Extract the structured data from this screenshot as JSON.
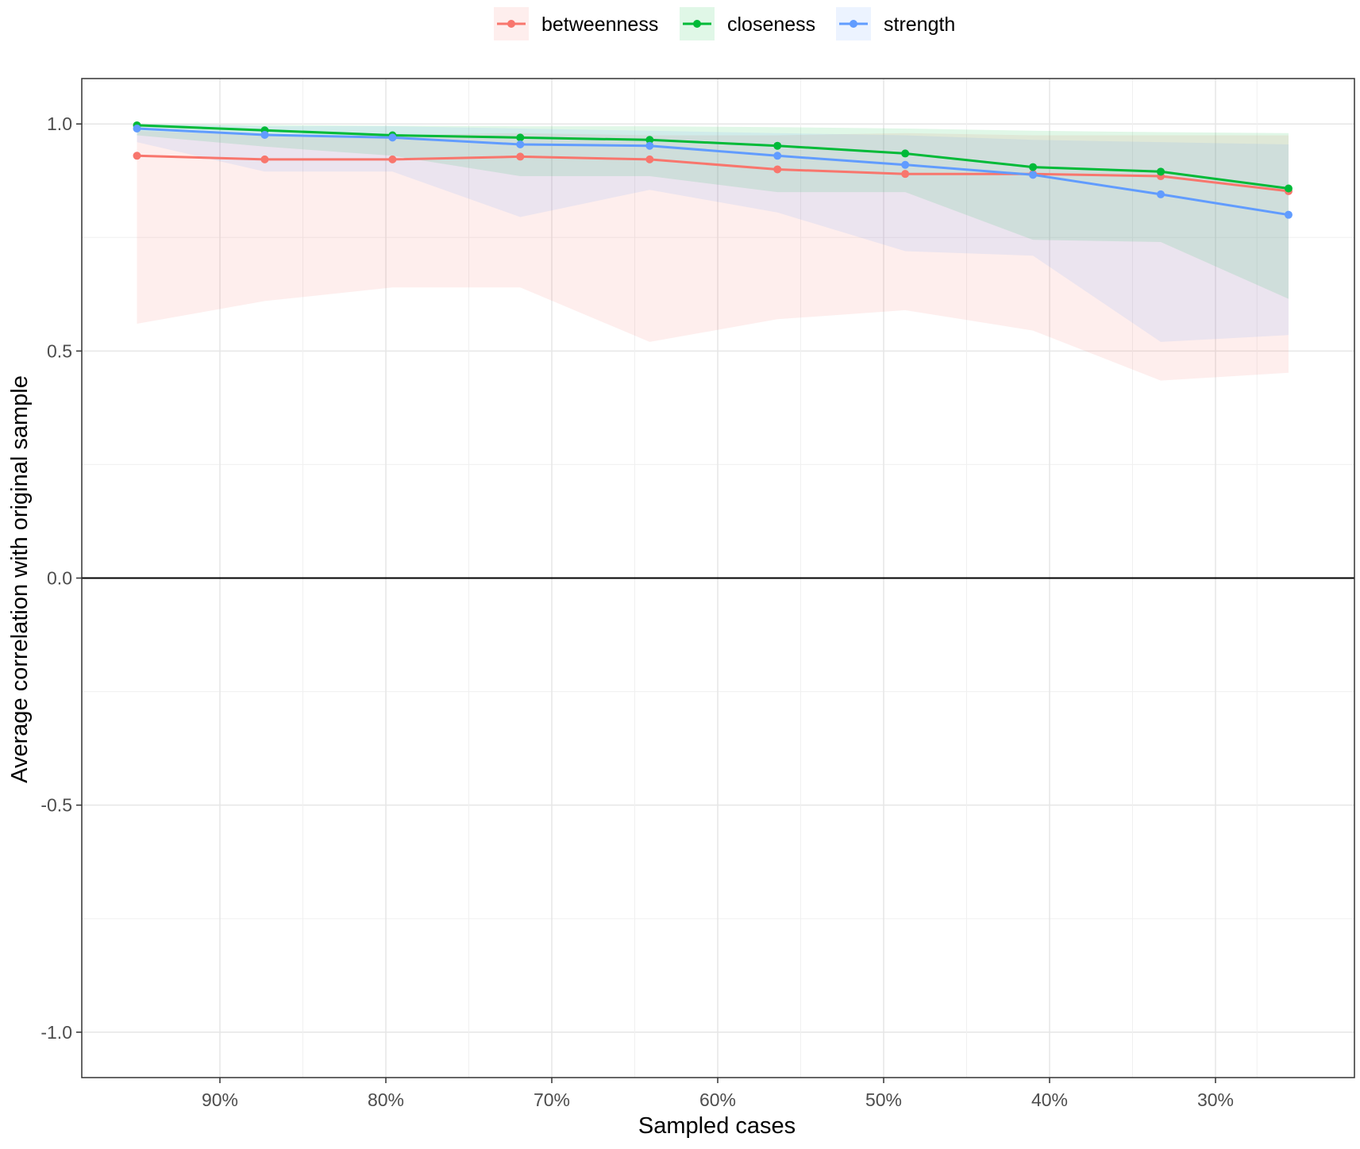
{
  "chart_data": {
    "type": "line",
    "xlabel": "Sampled cases",
    "ylabel": "Average correlation with original sample",
    "x_ticks": [
      "90%",
      "80%",
      "70%",
      "60%",
      "50%",
      "40%",
      "30%"
    ],
    "x_tick_values": [
      0.9,
      0.8,
      0.7,
      0.6,
      0.5,
      0.4,
      0.3
    ],
    "x_reversed": true,
    "xlim": [
      0.25,
      0.9833
    ],
    "y_ticks": [
      "1.0",
      "0.5",
      "0.0",
      "-0.5",
      "-1.0"
    ],
    "y_tick_values": [
      1.0,
      0.5,
      0.0,
      -0.5,
      -1.0
    ],
    "ylim": [
      -1.1,
      1.1
    ],
    "grid": true,
    "legend_position": "top",
    "x": [
      0.95,
      0.873,
      0.796,
      0.719,
      0.641,
      0.564,
      0.487,
      0.41,
      0.333,
      0.256
    ],
    "series": [
      {
        "name": "betweenness",
        "color": "#F8766D",
        "values": [
          0.93,
          0.922,
          0.922,
          0.928,
          0.922,
          0.9,
          0.89,
          0.89,
          0.885,
          0.852
        ],
        "lower": [
          0.56,
          0.61,
          0.64,
          0.64,
          0.52,
          0.57,
          0.59,
          0.545,
          0.435,
          0.452
        ],
        "upper": [
          0.985,
          0.975,
          0.975,
          0.98,
          0.975,
          0.975,
          0.98,
          0.975,
          0.975,
          0.975
        ]
      },
      {
        "name": "closeness",
        "color": "#00BA38",
        "values": [
          0.997,
          0.986,
          0.975,
          0.97,
          0.965,
          0.952,
          0.935,
          0.905,
          0.895,
          0.858
        ],
        "lower": [
          0.975,
          0.95,
          0.93,
          0.885,
          0.885,
          0.85,
          0.85,
          0.745,
          0.74,
          0.615
        ],
        "upper": [
          1.0,
          0.998,
          0.996,
          0.995,
          0.995,
          0.993,
          0.99,
          0.985,
          0.982,
          0.98
        ]
      },
      {
        "name": "strength",
        "color": "#619CFF",
        "values": [
          0.99,
          0.976,
          0.97,
          0.955,
          0.952,
          0.93,
          0.91,
          0.888,
          0.845,
          0.8
        ],
        "lower": [
          0.96,
          0.895,
          0.895,
          0.795,
          0.855,
          0.805,
          0.72,
          0.71,
          0.52,
          0.535
        ],
        "upper": [
          1.0,
          0.995,
          0.995,
          0.99,
          0.985,
          0.98,
          0.975,
          0.965,
          0.96,
          0.955
        ]
      }
    ]
  }
}
